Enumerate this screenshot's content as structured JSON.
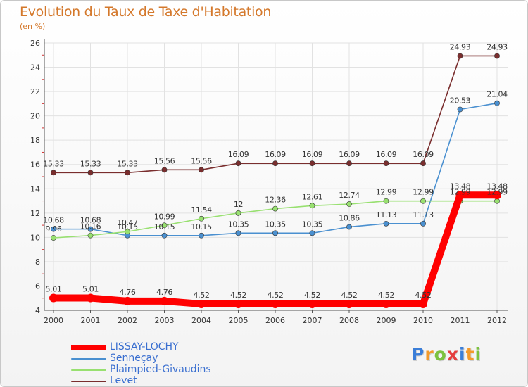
{
  "chart_data": {
    "type": "line",
    "title": "Evolution du Taux de Taxe d'Habitation",
    "subtitle": "(en %)",
    "xlabel": "",
    "ylabel": "",
    "categories": [
      "2000",
      "2001",
      "2002",
      "2003",
      "2004",
      "2005",
      "2006",
      "2007",
      "2008",
      "2009",
      "2010",
      "2011",
      "2012"
    ],
    "ylim": [
      4,
      26
    ],
    "yticks": [
      "4",
      "6",
      "8",
      "10",
      "12",
      "14",
      "16",
      "18",
      "20",
      "22",
      "24",
      "26"
    ],
    "grid": true,
    "legend_position": "bottom-left",
    "series": [
      {
        "name": "LISSAY-LOCHY",
        "color": "#ff0000",
        "values": [
          5.01,
          5.01,
          4.76,
          4.76,
          4.52,
          4.52,
          4.52,
          4.52,
          4.52,
          4.52,
          4.52,
          13.48,
          13.48
        ],
        "labels": [
          "5.01",
          "5.01",
          "4.76",
          "4.76",
          "4.52",
          "4.52",
          "4.52",
          "4.52",
          "4.52",
          "4.52",
          "4.52",
          "13.48",
          "13.48"
        ]
      },
      {
        "name": "Senneçay",
        "color": "#4a90d0",
        "values": [
          10.68,
          10.68,
          10.15,
          10.15,
          10.15,
          10.35,
          10.35,
          10.35,
          10.86,
          11.13,
          11.13,
          20.53,
          21.04
        ],
        "labels": [
          "10.68",
          "10.68",
          "10.15",
          "10.15",
          "10.15",
          "10.35",
          "10.35",
          "10.35",
          "10.86",
          "11.13",
          "11.13",
          "20.53",
          "21.04"
        ]
      },
      {
        "name": "Plaimpied-Givaudins",
        "color": "#98e070",
        "values": [
          9.96,
          10.16,
          10.47,
          10.99,
          11.54,
          12,
          12.36,
          12.61,
          12.74,
          12.99,
          12.99,
          12.99,
          12.99
        ],
        "labels": [
          "9.96",
          "10.16",
          "10.47",
          "10.99",
          "11.54",
          "12",
          "12.36",
          "12.61",
          "12.74",
          "12.99",
          "12.99",
          "12.99",
          "12.99"
        ]
      },
      {
        "name": "Levet",
        "color": "#7a2e2e",
        "values": [
          15.33,
          15.33,
          15.33,
          15.56,
          15.56,
          16.09,
          16.09,
          16.09,
          16.09,
          16.09,
          16.09,
          24.93,
          24.93
        ],
        "labels": [
          "15.33",
          "15.33",
          "15.33",
          "15.56",
          "15.56",
          "16.09",
          "16.09",
          "16.09",
          "16.09",
          "16.09",
          "16.09",
          "24.93",
          "24.93"
        ]
      }
    ]
  },
  "logo": {
    "text": "Proxiti",
    "letters": [
      "P",
      "r",
      "o",
      "x",
      "i",
      "t",
      "i"
    ],
    "colors": [
      "#3b7ed8",
      "#f39a2a",
      "#7cc23f",
      "#e53c3c",
      "#3b7ed8",
      "#f39a2a",
      "#7cc23f"
    ]
  }
}
